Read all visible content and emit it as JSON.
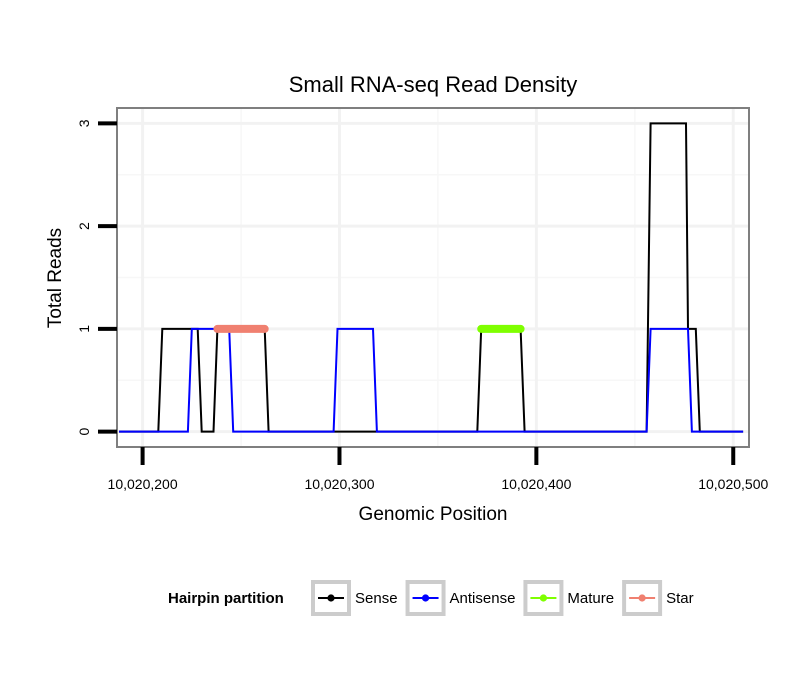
{
  "chart_data": {
    "type": "line",
    "title": "Small RNA-seq Read Density",
    "xlabel": "Genomic Position",
    "ylabel": "Total Reads",
    "xlim": [
      10020187,
      10020508
    ],
    "ylim": [
      -0.15,
      3.15
    ],
    "x_ticks": [
      {
        "value": 10020200,
        "label": "10,020,200"
      },
      {
        "value": 10020300,
        "label": "10,020,300"
      },
      {
        "value": 10020400,
        "label": "10,020,400"
      },
      {
        "value": 10020500,
        "label": "10,020,500"
      }
    ],
    "y_ticks": [
      {
        "value": 0,
        "label": "0"
      },
      {
        "value": 1,
        "label": "1"
      },
      {
        "value": 2,
        "label": "2"
      },
      {
        "value": 3,
        "label": "3"
      }
    ],
    "grid": true,
    "legend_title": "Hairpin partition",
    "legend_position": "bottom",
    "series": [
      {
        "name": "Sense",
        "color": "#000000",
        "x": [
          10020188,
          10020208,
          10020210,
          10020228,
          10020230,
          10020236,
          10020238,
          10020262,
          10020264,
          10020370,
          10020372,
          10020392,
          10020394,
          10020456,
          10020458,
          10020476,
          10020477,
          10020481,
          10020483,
          10020505
        ],
        "y": [
          0,
          0,
          1,
          1,
          0,
          0,
          1,
          1,
          0,
          0,
          1,
          1,
          0,
          0,
          3,
          3,
          1,
          1,
          0,
          0
        ]
      },
      {
        "name": "Antisense",
        "color": "#0000ff",
        "x": [
          10020188,
          10020223,
          10020225,
          10020244,
          10020246,
          10020297,
          10020299,
          10020317,
          10020319,
          10020456,
          10020458,
          10020477,
          10020479,
          10020505
        ],
        "y": [
          0,
          0,
          1,
          1,
          0,
          0,
          1,
          1,
          0,
          0,
          1,
          1,
          0,
          0
        ]
      },
      {
        "name": "Mature",
        "color": "#7fff00",
        "x": [
          10020372,
          10020392
        ],
        "y": [
          1,
          1
        ]
      },
      {
        "name": "Star",
        "color": "#f08070",
        "x": [
          10020238,
          10020262
        ],
        "y": [
          1,
          1
        ]
      }
    ]
  }
}
